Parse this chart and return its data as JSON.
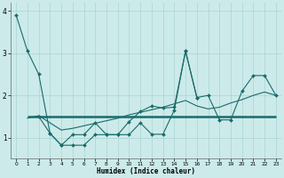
{
  "title": "",
  "xlabel": "Humidex (Indice chaleur)",
  "bg_color": "#cceaea",
  "line_color": "#1a6b6b",
  "grid_color": "#aad4d4",
  "xlim": [
    -0.5,
    23.5
  ],
  "ylim": [
    0.5,
    4.2
  ],
  "yticks": [
    1,
    2,
    3,
    4
  ],
  "xticks": [
    0,
    1,
    2,
    3,
    4,
    5,
    6,
    7,
    8,
    9,
    10,
    11,
    12,
    13,
    14,
    15,
    16,
    17,
    18,
    19,
    20,
    21,
    22,
    23
  ],
  "s1_x": [
    0,
    1,
    2,
    3,
    4,
    5,
    6,
    7,
    8,
    9,
    10,
    11,
    12,
    13,
    14,
    15,
    16
  ],
  "s1_y": [
    3.9,
    3.05,
    2.5,
    1.1,
    0.82,
    0.82,
    0.82,
    1.07,
    1.07,
    1.07,
    1.07,
    1.35,
    1.08,
    1.08,
    1.65,
    3.05,
    1.95
  ],
  "s2_x": [
    1,
    2,
    3,
    4,
    5,
    6,
    7,
    8,
    9,
    10,
    11,
    12,
    13,
    14,
    15,
    16,
    17,
    18,
    19,
    20,
    21,
    22,
    23
  ],
  "s2_y": [
    1.5,
    1.5,
    1.5,
    1.5,
    1.5,
    1.5,
    1.5,
    1.5,
    1.5,
    1.5,
    1.5,
    1.5,
    1.5,
    1.5,
    1.5,
    1.5,
    1.5,
    1.5,
    1.5,
    1.5,
    1.5,
    1.5,
    1.5
  ],
  "s3_x": [
    2,
    3,
    4,
    5,
    6,
    7,
    8,
    9,
    10,
    11,
    12,
    13,
    14,
    15,
    16,
    17,
    18,
    19,
    20,
    21,
    22,
    23
  ],
  "s3_y": [
    1.5,
    1.1,
    0.82,
    1.07,
    1.07,
    1.35,
    1.07,
    1.07,
    1.38,
    1.62,
    1.75,
    1.7,
    1.72,
    3.05,
    1.95,
    2.0,
    1.42,
    1.42,
    2.1,
    2.47,
    2.47,
    2.0
  ],
  "s4_x": [
    1,
    2,
    3,
    4,
    5,
    6,
    7,
    8,
    9,
    10,
    11,
    12,
    13,
    14,
    15,
    16,
    17,
    18,
    19,
    20,
    21,
    22,
    23
  ],
  "s4_y": [
    1.46,
    1.52,
    1.35,
    1.18,
    1.22,
    1.28,
    1.34,
    1.4,
    1.46,
    1.54,
    1.6,
    1.66,
    1.72,
    1.8,
    1.88,
    1.75,
    1.68,
    1.72,
    1.82,
    1.9,
    2.0,
    2.08,
    2.0
  ]
}
